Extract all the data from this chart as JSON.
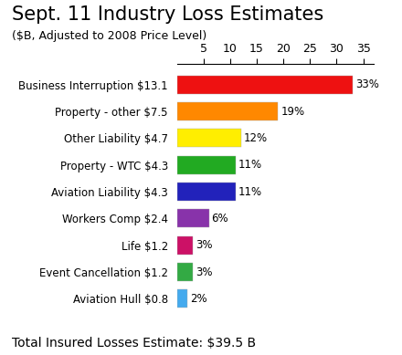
{
  "title": "Sept. 11 Industry Loss Estimates",
  "subtitle": "($B, Adjusted to 2008 Price Level)",
  "categories": [
    "Business Interruption $13.1",
    "Property - other $7.5",
    "Other Liability $4.7",
    "Property - WTC $4.3",
    "Aviation Liability $4.3",
    "Workers Comp $2.4",
    "Life $1.2",
    "Event Cancellation $1.2",
    "Aviation Hull $0.8"
  ],
  "values": [
    33,
    19,
    12,
    11,
    11,
    6,
    3,
    3,
    2
  ],
  "bar_colors": [
    "#EE1111",
    "#FF8800",
    "#FFEE00",
    "#22AA22",
    "#2222BB",
    "#8833AA",
    "#CC1166",
    "#33AA44",
    "#44AAEE"
  ],
  "labels": [
    "33%",
    "19%",
    "12%",
    "11%",
    "11%",
    "6%",
    "3%",
    "3%",
    "2%"
  ],
  "xlim": [
    0,
    37
  ],
  "xticks": [
    5,
    10,
    15,
    20,
    25,
    30,
    35
  ],
  "footer": "Total Insured Losses Estimate: $39.5 B",
  "background_color": "#ffffff",
  "title_fontsize": 15,
  "subtitle_fontsize": 9,
  "label_fontsize": 8.5,
  "tick_fontsize": 9,
  "footer_fontsize": 10,
  "bar_height": 0.68
}
